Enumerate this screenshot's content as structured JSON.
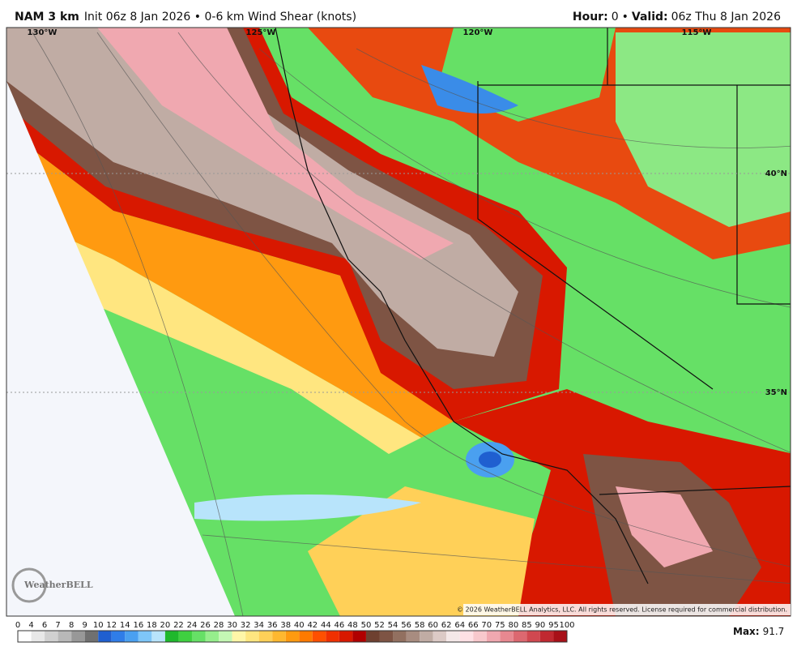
{
  "header": {
    "model": "NAM 3 km",
    "init_and_field": "Init 06z 8 Jan 2026 • 0-6 km Wind Shear (knots)",
    "hour_label": "Hour:",
    "hour": 0,
    "separator": "•",
    "valid_label": "Valid:",
    "valid": "06z Thu 8 Jan 2026"
  },
  "map": {
    "longitudes": [
      "130°W",
      "125°W",
      "120°W",
      "115°W"
    ],
    "latitudes": [
      "40°N",
      "35°N"
    ],
    "copyright": "© 2026 WeatherBELL Analytics, LLC. All rights reserved. License required for commercial distribution.",
    "logo": "WeatherBELL"
  },
  "colorbar": {
    "labels": [
      0,
      4,
      6,
      7,
      8,
      9,
      10,
      12,
      14,
      16,
      18,
      20,
      22,
      24,
      26,
      28,
      30,
      32,
      34,
      36,
      38,
      40,
      42,
      44,
      46,
      48,
      50,
      52,
      54,
      56,
      58,
      60,
      62,
      64,
      66,
      70,
      75,
      80,
      85,
      90,
      95,
      100
    ],
    "colors": [
      "#ffffff",
      "#e8e8e8",
      "#d0d0d0",
      "#b8b8b8",
      "#989898",
      "#707070",
      "#1f5fd0",
      "#2f7de8",
      "#4aa0f0",
      "#7ec6f8",
      "#b8e4fb",
      "#1fb82c",
      "#3fd040",
      "#66e066",
      "#96ee8c",
      "#c4f7b4",
      "#fff6a8",
      "#ffe680",
      "#ffd058",
      "#ffb830",
      "#ff9a10",
      "#ff7a00",
      "#ff5000",
      "#f03000",
      "#d81800",
      "#b00000",
      "#6e4030",
      "#7e5444",
      "#927060",
      "#a88c80",
      "#c0aca4",
      "#dccac6",
      "#f4e8e8",
      "#ffe0e4",
      "#f8c8cc",
      "#f0a8b0",
      "#e88890",
      "#dc6870",
      "#d04850",
      "#c02830",
      "#a81018"
    ]
  },
  "max": {
    "label": "Max:",
    "value": 91.7
  }
}
